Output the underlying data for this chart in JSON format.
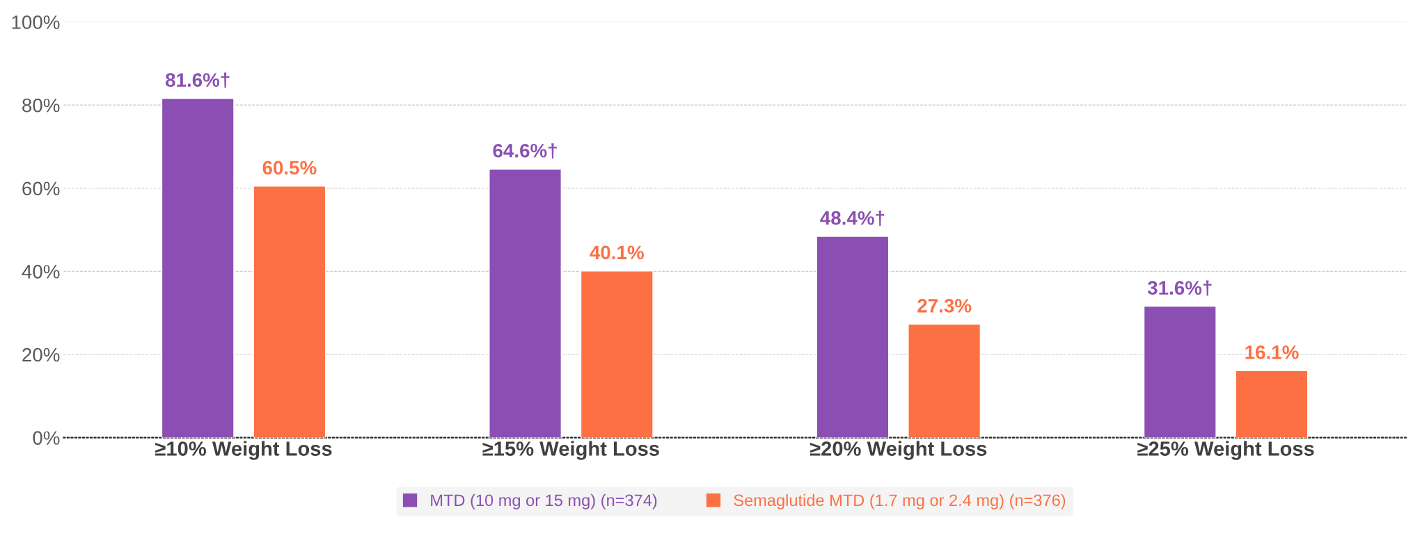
{
  "chart_data": {
    "type": "bar",
    "categories": [
      "≥10% Weight Loss",
      "≥15% Weight Loss",
      "≥20% Weight Loss",
      "≥25% Weight Loss"
    ],
    "series": [
      {
        "name": "MTD (10 mg or 15 mg) (n=374)",
        "color": "#8b4fb3",
        "values": [
          81.6,
          64.6,
          48.4,
          31.6
        ],
        "value_labels": [
          "81.6%†",
          "64.6%†",
          "48.4%†",
          "31.6%†"
        ]
      },
      {
        "name": "Semaglutide MTD (1.7 mg or 2.4 mg) (n=376)",
        "color": "#fd7043",
        "values": [
          60.5,
          40.1,
          27.3,
          16.1
        ],
        "value_labels": [
          "60.5%",
          "40.1%",
          "27.3%",
          "16.1%"
        ]
      }
    ],
    "ylim": [
      0,
      100
    ],
    "yticks": [
      {
        "value": 0,
        "label": "0%"
      },
      {
        "value": 20,
        "label": "20%"
      },
      {
        "value": 40,
        "label": "40%"
      },
      {
        "value": 60,
        "label": "60%"
      },
      {
        "value": 80,
        "label": "80%"
      },
      {
        "value": 100,
        "label": "100%"
      }
    ],
    "grid": "y",
    "legend": "bottom"
  }
}
